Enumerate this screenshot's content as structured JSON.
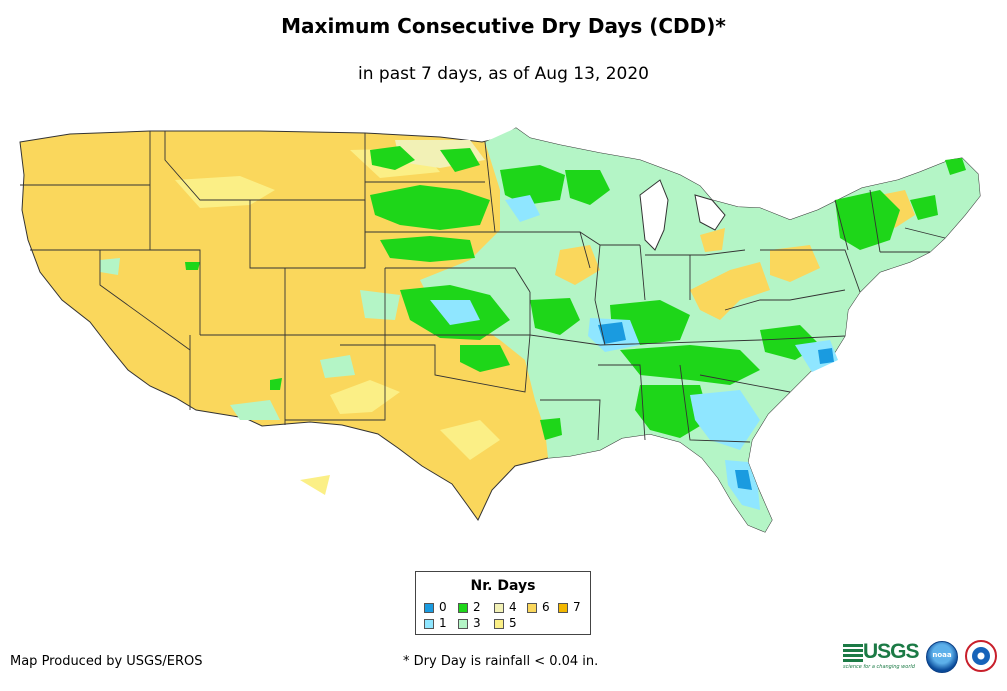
{
  "title": "Maximum Consecutive Dry Days (CDD)*",
  "subtitle": "in past 7 days, as of Aug 13, 2020",
  "legend": {
    "title": "Nr. Days",
    "items": [
      {
        "label": "0",
        "color": "#1a9be0"
      },
      {
        "label": "1",
        "color": "#8fe6ff"
      },
      {
        "label": "2",
        "color": "#1ed619"
      },
      {
        "label": "3",
        "color": "#b4f5c6"
      },
      {
        "label": "4",
        "color": "#f2f1b6"
      },
      {
        "label": "5",
        "color": "#fbef86"
      },
      {
        "label": "6",
        "color": "#fad75c"
      },
      {
        "label": "7",
        "color": "#f2b700"
      }
    ]
  },
  "footer": {
    "credit": "Map Produced by USGS/EROS",
    "note": "* Dry Day is rainfall < 0.04 in."
  },
  "logos": {
    "usgs": "USGS",
    "usgs_tagline": "science for a changing world",
    "noaa": "noaa",
    "nws": "nws-logo"
  },
  "map": {
    "subject": "Contiguous United States",
    "base_color": "#fad75c",
    "state_border_color": "#333333"
  }
}
